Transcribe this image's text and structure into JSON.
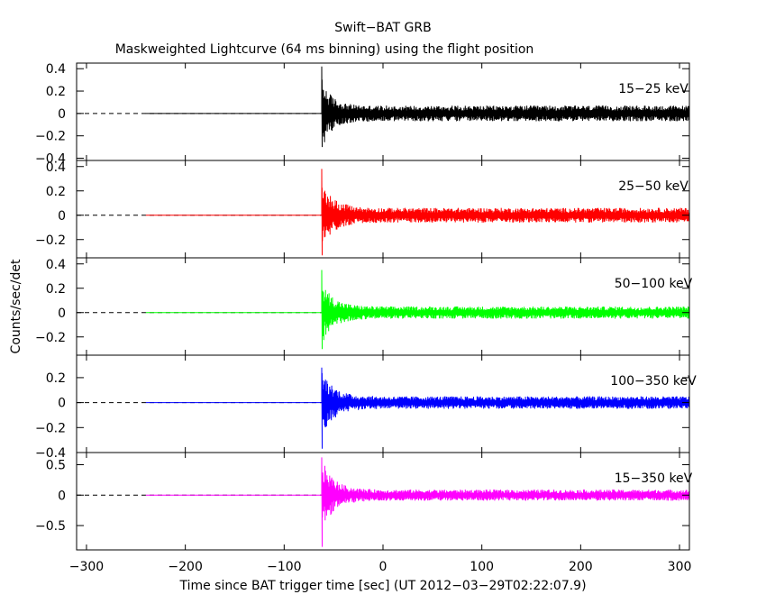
{
  "title": "Swift−BAT GRB",
  "subtitle": "Maskweighted Lightcurve (64 ms binning) using the flight position",
  "chart_data": {
    "type": "line",
    "title": "Swift−BAT GRB",
    "subtitle": "Maskweighted Lightcurve (64 ms binning) using the flight position",
    "xlabel": "Time since BAT trigger time [sec] (UT 2012−03−29T02:22:07.9)",
    "ylabel": "Counts/sec/det",
    "xlim": [
      -310,
      310
    ],
    "xticks": [
      -300,
      -200,
      -100,
      0,
      100,
      200,
      300
    ],
    "xtick_labels": [
      "−300",
      "−200",
      "−100",
      "0",
      "100",
      "200",
      "300"
    ],
    "zero_line": "dashed",
    "panels": [
      {
        "band": "15−25 keV",
        "color": "#000000",
        "ylim": [
          -0.42,
          0.45
        ],
        "yticks": [
          -0.4,
          -0.2,
          0,
          0.2,
          0.4
        ],
        "ytick_labels": [
          "−0.4",
          "−0.2",
          "0",
          "0.2",
          "0.4"
        ],
        "flat_start": -240,
        "burst_time": -62,
        "peak": 0.42,
        "trough": -0.3,
        "noise_amplitude": 0.07,
        "decay_seconds": 10
      },
      {
        "band": "25−50 keV",
        "color": "#ff0000",
        "ylim": [
          -0.35,
          0.45
        ],
        "yticks": [
          -0.2,
          0,
          0.2,
          0.4
        ],
        "ytick_labels": [
          "−0.2",
          "0",
          "0.2",
          "0.4"
        ],
        "flat_start": -240,
        "burst_time": -62,
        "peak": 0.38,
        "trough": -0.33,
        "noise_amplitude": 0.06,
        "decay_seconds": 12
      },
      {
        "band": "50−100 keV",
        "color": "#00ff00",
        "ylim": [
          -0.35,
          0.45
        ],
        "yticks": [
          -0.2,
          0,
          0.2,
          0.4
        ],
        "ytick_labels": [
          "−0.2",
          "0",
          "0.2",
          "0.4"
        ],
        "flat_start": -240,
        "burst_time": -62,
        "peak": 0.35,
        "trough": -0.3,
        "noise_amplitude": 0.05,
        "decay_seconds": 12
      },
      {
        "band": "100−350 keV",
        "color": "#0000ff",
        "ylim": [
          -0.4,
          0.38
        ],
        "yticks": [
          -0.4,
          -0.2,
          0,
          0.2
        ],
        "ytick_labels": [
          "−0.4",
          "−0.2",
          "0",
          "0.2"
        ],
        "flat_start": -240,
        "burst_time": -62,
        "peak": 0.28,
        "trough": -0.37,
        "noise_amplitude": 0.05,
        "decay_seconds": 12
      },
      {
        "band": "15−350 keV",
        "color": "#ff00ff",
        "ylim": [
          -0.9,
          0.7
        ],
        "yticks": [
          -0.5,
          0,
          0.5
        ],
        "ytick_labels": [
          "−0.5",
          "0",
          "0.5"
        ],
        "flat_start": -240,
        "burst_time": -62,
        "peak": 0.62,
        "trough": -0.85,
        "noise_amplitude": 0.09,
        "decay_seconds": 12
      }
    ]
  }
}
